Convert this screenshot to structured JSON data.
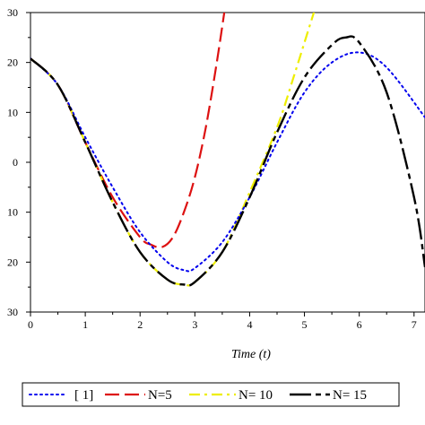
{
  "chart_data": {
    "type": "line",
    "xlabel": "Time (t)",
    "ylabel": "",
    "xlim": [
      0,
      7.2
    ],
    "ylim": [
      -30,
      30
    ],
    "x_ticks": [
      0,
      1,
      2,
      3,
      4,
      5,
      6,
      7
    ],
    "y_ticks": [
      -30,
      -20,
      -10,
      0,
      10,
      20,
      30
    ],
    "x_tick_labels": [
      "0",
      "1",
      "2",
      "3",
      "4",
      "5",
      "6",
      "7"
    ],
    "y_tick_labels": [
      "30",
      "20",
      "10",
      "0",
      "10",
      "20",
      "30"
    ],
    "grid": false,
    "legend_position": "bottom",
    "series": [
      {
        "name": "[ 1]",
        "color": "#0000ee",
        "dash": "dotted",
        "x": [
          0,
          0.5,
          1.0,
          1.5,
          2.0,
          2.5,
          2.8,
          3.0,
          3.5,
          4.0,
          4.5,
          5.0,
          5.5,
          6.0,
          6.5,
          7.2
        ],
        "y": [
          20.8,
          15.5,
          5,
          -5,
          -14,
          -20,
          -21.6,
          -21.2,
          -16,
          -7,
          4,
          14,
          20,
          22,
          19,
          9
        ]
      },
      {
        "name": "N=5",
        "color": "#dd1111",
        "dash": "dashed",
        "x": [
          0,
          0.5,
          1.0,
          1.5,
          2.0,
          2.2,
          2.4,
          2.6,
          2.8,
          3.0,
          3.2,
          3.4,
          3.55
        ],
        "y": [
          20.8,
          15.5,
          4,
          -7,
          -15,
          -16.5,
          -17,
          -15,
          -10,
          -3,
          7,
          20,
          31
        ]
      },
      {
        "name": "N= 10",
        "color": "#eeee00",
        "dash": "dashdot",
        "x": [
          0,
          0.5,
          1.0,
          1.5,
          2.0,
          2.5,
          2.8,
          3.0,
          3.5,
          4.0,
          4.5,
          4.8,
          5.0,
          5.2
        ],
        "y": [
          20.8,
          15.5,
          4,
          -8,
          -18,
          -23.5,
          -24.5,
          -24,
          -18,
          -6,
          7,
          17,
          24,
          31
        ]
      },
      {
        "name": "N= 15",
        "color": "#000000",
        "dash": "longdash",
        "x": [
          0,
          0.5,
          1.0,
          1.5,
          2.0,
          2.5,
          2.8,
          3.0,
          3.5,
          4.0,
          4.5,
          5.0,
          5.5,
          5.75,
          6.0,
          6.5,
          7.0,
          7.2
        ],
        "y": [
          20.8,
          15.5,
          4,
          -8,
          -18,
          -23.5,
          -24.5,
          -24,
          -18,
          -7,
          6,
          17,
          23.5,
          25,
          24,
          14,
          -7,
          -21
        ]
      }
    ]
  }
}
